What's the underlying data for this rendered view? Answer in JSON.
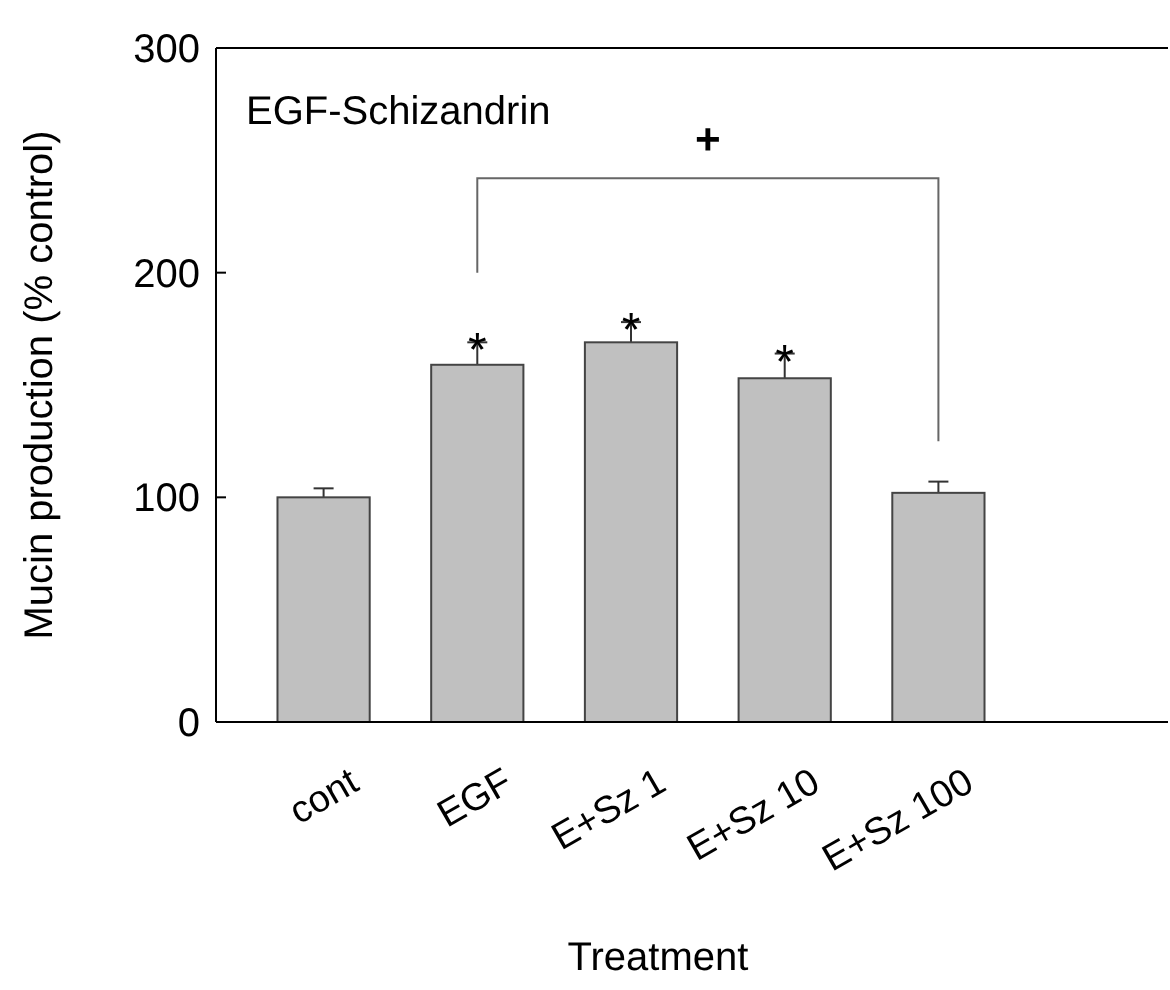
{
  "chart_data": {
    "type": "bar",
    "title": "EGF-Schizandrin",
    "xlabel": "Treatment",
    "ylabel": "Mucin production (% control)",
    "categories": [
      "cont",
      "EGF",
      "E+Sz 1",
      "E+Sz 10",
      "E+Sz 100"
    ],
    "values": [
      100,
      159,
      169,
      153,
      102
    ],
    "errors": [
      4,
      10,
      9,
      11,
      5
    ],
    "color": "#c0c0c0",
    "ylim": [
      0,
      300
    ],
    "yticks": [
      0,
      100,
      200,
      300
    ],
    "grid": false,
    "annotations": [
      {
        "text": "*",
        "x": "EGF",
        "y": 159
      },
      {
        "text": "*",
        "x": "E+Sz 1",
        "y": 169
      },
      {
        "text": "*",
        "x": "E+Sz 10",
        "y": 153
      },
      "+"
    ]
  }
}
